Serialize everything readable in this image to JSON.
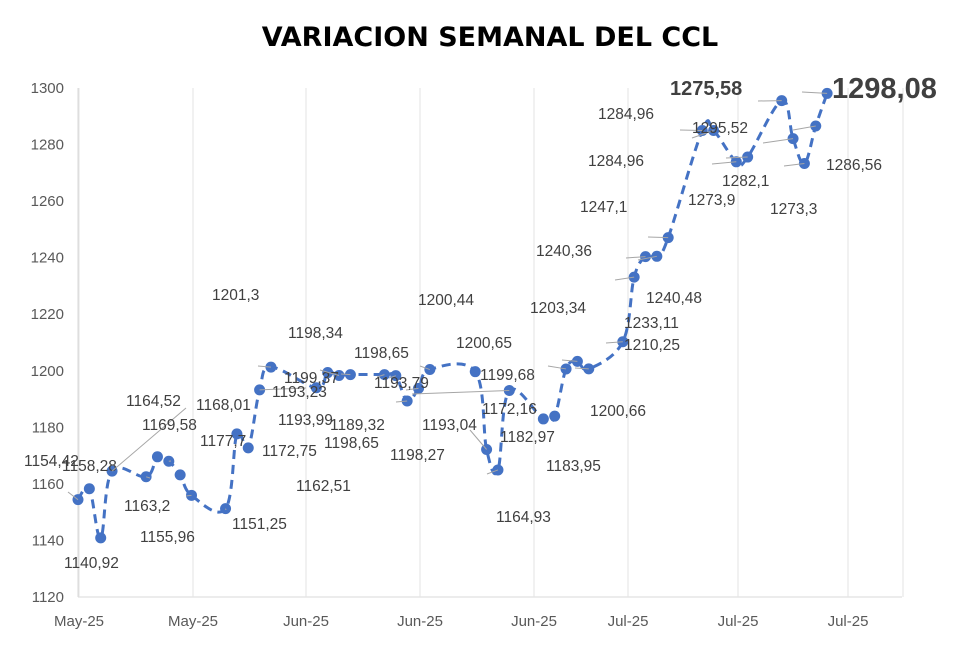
{
  "chart_data": {
    "type": "line",
    "title": "VARIACION SEMANAL DEL CCL",
    "xlabel": "",
    "ylabel": "",
    "ylim": [
      1120,
      1300
    ],
    "yticks": [
      "1120",
      "1140",
      "1160",
      "1180",
      "1200",
      "1220",
      "1240",
      "1260",
      "1280",
      "1300"
    ],
    "xtick_labels": [
      "May-25",
      "May-25",
      "Jun-25",
      "Jun-25",
      "Jun-25",
      "Jul-25",
      "Jul-25",
      "Jul-25"
    ],
    "grid": "vertical",
    "legend": "none",
    "series_color": "#4472c4",
    "line_style": "dashed",
    "points": [
      {
        "day": 0,
        "value": 1154.42,
        "label": "1154,42"
      },
      {
        "day": 1,
        "value": 1158.28,
        "label": "1158,28"
      },
      {
        "day": 2,
        "value": 1140.92,
        "label": "1140,92"
      },
      {
        "day": 3,
        "value": 1164.52,
        "label": "1164,52"
      },
      {
        "day": 6,
        "value": 1162.51,
        "label": "1162,51"
      },
      {
        "day": 7,
        "value": 1169.58,
        "label": "1169,58"
      },
      {
        "day": 8,
        "value": 1168.01,
        "label": "1168,01"
      },
      {
        "day": 9,
        "value": 1163.2,
        "label": "1163,2"
      },
      {
        "day": 10,
        "value": 1155.96,
        "label": "1155,96"
      },
      {
        "day": 13,
        "value": 1151.25,
        "label": "1151,25"
      },
      {
        "day": 14,
        "value": 1177.7,
        "label": "1177,7"
      },
      {
        "day": 15,
        "value": 1172.75,
        "label": "1172,75"
      },
      {
        "day": 16,
        "value": 1193.23,
        "label": "1193,23"
      },
      {
        "day": 17,
        "value": 1201.3,
        "label": "1201,3"
      },
      {
        "day": 21,
        "value": 1193.99,
        "label": "1193,99"
      },
      {
        "day": 22,
        "value": 1199.37,
        "label": "1199,37"
      },
      {
        "day": 23,
        "value": 1198.34,
        "label": "1198,34"
      },
      {
        "day": 24,
        "value": 1198.65,
        "label": "1198,65"
      },
      {
        "day": 27,
        "value": 1198.65,
        "label": "1198,65"
      },
      {
        "day": 28,
        "value": 1198.27,
        "label": "1198,27"
      },
      {
        "day": 29,
        "value": 1189.32,
        "label": "1189,32"
      },
      {
        "day": 30,
        "value": 1193.79,
        "label": "1193,79"
      },
      {
        "day": 31,
        "value": 1200.44,
        "label": "1200,44"
      },
      {
        "day": 35,
        "value": 1199.68,
        "label": "1199,68"
      },
      {
        "day": 36,
        "value": 1172.16,
        "label": "1172,16"
      },
      {
        "day": 37,
        "value": 1164.93,
        "label": "1164,93"
      },
      {
        "day": 38,
        "value": 1193.04,
        "label": "1193,04"
      },
      {
        "day": 41,
        "value": 1182.97,
        "label": "1182,97"
      },
      {
        "day": 42,
        "value": 1183.95,
        "label": "1183,95"
      },
      {
        "day": 43,
        "value": 1200.65,
        "label": "1200,65"
      },
      {
        "day": 44,
        "value": 1203.34,
        "label": "1203,34"
      },
      {
        "day": 45,
        "value": 1200.66,
        "label": "1200,66"
      },
      {
        "day": 48,
        "value": 1210.25,
        "label": "1210,25"
      },
      {
        "day": 49,
        "value": 1233.11,
        "label": "1233,11"
      },
      {
        "day": 50,
        "value": 1240.36,
        "label": "1240,36"
      },
      {
        "day": 51,
        "value": 1240.48,
        "label": "1240,48"
      },
      {
        "day": 52,
        "value": 1247.1,
        "label": "1247,1"
      },
      {
        "day": 55,
        "value": 1284.96,
        "label": "1284,96"
      },
      {
        "day": 56,
        "value": 1284.96,
        "label": "1284,96"
      },
      {
        "day": 58,
        "value": 1273.9,
        "label": "1273,9"
      },
      {
        "day": 59,
        "value": 1275.58,
        "label": "1275,58"
      },
      {
        "day": 62,
        "value": 1295.52,
        "label": "1295,52"
      },
      {
        "day": 63,
        "value": 1282.1,
        "label": "1282,1"
      },
      {
        "day": 64,
        "value": 1273.3,
        "label": "1273,3"
      },
      {
        "day": 65,
        "value": 1286.56,
        "label": "1286,56"
      },
      {
        "day": 66,
        "value": 1298.08,
        "label": "1298,08"
      }
    ]
  }
}
